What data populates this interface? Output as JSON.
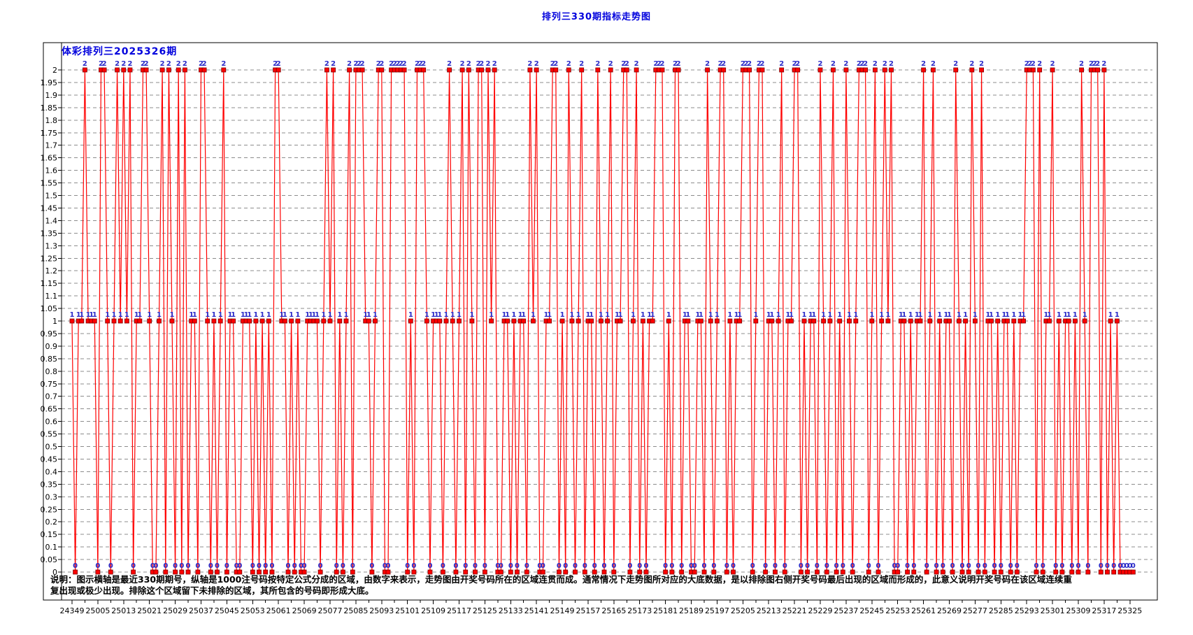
{
  "page_title": "排列三330期指标走势图",
  "chart": {
    "header": "体彩排列三2025326期",
    "description_lines": [
      "说明：图示横轴是最近330期期号，纵轴是1000注号码按特定公式分成的区域，由数字来表示，走势图由开奖号码所在的区域连贯而成。通常情况下走势图所对应的大底数据，是以排除图右侧开奖号码最后出现的区域而形成的，此意义说明开奖号码在该区域连续重",
      "复出现或极少出现。排除这个区域留下未排除的区域，其所包含的号码即形成大底。"
    ]
  },
  "chart_data": {
    "type": "line",
    "title": "排列三330期指标走势图",
    "subtitle": "体彩排列三2025326期",
    "points_count": 330,
    "point_values_are_labeled": true,
    "grid": "dashed-horizontal",
    "legend": "none",
    "x_axis": {
      "first_period": "24349",
      "label_every_n_points": 8,
      "tick_labels": [
        "24349",
        "25005",
        "25013",
        "25021",
        "25029",
        "25037",
        "25045",
        "25053",
        "25061",
        "25069",
        "25077",
        "25085",
        "25093",
        "25101",
        "25109",
        "25117",
        "25125",
        "25133",
        "25141",
        "25149",
        "25157",
        "25165",
        "25173",
        "25181",
        "25189",
        "25197",
        "25205",
        "25213",
        "25221",
        "25229",
        "25237",
        "25245",
        "25253",
        "25261",
        "25269",
        "25277",
        "25285",
        "25293",
        "25301",
        "25309",
        "25317",
        "25325"
      ]
    },
    "y_axis": {
      "min": 0,
      "max": 2,
      "step": 0.05,
      "tick_labels": [
        "2",
        "1.95",
        "1.9",
        "1.85",
        "1.8",
        "1.75",
        "1.7",
        "1.65",
        "1.6",
        "1.55",
        "1.5",
        "1.45",
        "1.4",
        "1.35",
        "1.3",
        "1.25",
        "1.2",
        "1.15",
        "1.1",
        "1.05",
        "1",
        "0.95",
        "0.9",
        "0.85",
        "0.8",
        "0.75",
        "0.7",
        "0.65",
        "0.6",
        "0.55",
        "0.5",
        "0.45",
        "0.4",
        "0.35",
        "0.3",
        "0.25",
        "0.2",
        "0.15",
        "0.1",
        "0.05",
        "0"
      ]
    },
    "values": [
      1,
      0,
      1,
      1,
      2,
      1,
      1,
      1,
      0,
      2,
      2,
      1,
      0,
      1,
      2,
      1,
      2,
      1,
      2,
      0,
      1,
      1,
      2,
      2,
      1,
      0,
      0,
      1,
      2,
      0,
      2,
      1,
      0,
      2,
      0,
      2,
      0,
      1,
      1,
      0,
      2,
      2,
      1,
      0,
      1,
      0,
      1,
      2,
      0,
      1,
      1,
      0,
      0,
      1,
      1,
      1,
      0,
      1,
      0,
      1,
      0,
      1,
      0,
      2,
      2,
      1,
      1,
      0,
      1,
      0,
      1,
      0,
      0,
      1,
      1,
      1,
      1,
      0,
      1,
      2,
      1,
      2,
      0,
      1,
      0,
      1,
      2,
      0,
      2,
      2,
      2,
      1,
      1,
      0,
      1,
      2,
      2,
      0,
      0,
      2,
      2,
      2,
      2,
      2,
      0,
      1,
      0,
      2,
      2,
      2,
      1,
      0,
      1,
      1,
      1,
      0,
      1,
      2,
      1,
      0,
      1,
      2,
      0,
      2,
      1,
      0,
      2,
      2,
      0,
      2,
      1,
      2,
      0,
      0,
      1,
      1,
      0,
      1,
      0,
      1,
      1,
      0,
      2,
      1,
      2,
      0,
      0,
      1,
      1,
      2,
      2,
      0,
      1,
      0,
      2,
      1,
      0,
      1,
      2,
      0,
      1,
      1,
      0,
      2,
      1,
      0,
      1,
      2,
      0,
      1,
      1,
      2,
      2,
      0,
      1,
      2,
      0,
      1,
      0,
      1,
      1,
      2,
      2,
      2,
      0,
      1,
      0,
      2,
      2,
      0,
      1,
      1,
      0,
      0,
      1,
      1,
      0,
      2,
      1,
      0,
      1,
      2,
      2,
      0,
      1,
      0,
      1,
      1,
      2,
      2,
      2,
      0,
      1,
      2,
      2,
      0,
      1,
      1,
      0,
      1,
      2,
      0,
      1,
      1,
      2,
      2,
      0,
      1,
      0,
      1,
      1,
      0,
      2,
      1,
      0,
      1,
      2,
      0,
      1,
      0,
      2,
      1,
      0,
      1,
      2,
      2,
      2,
      0,
      1,
      2,
      0,
      1,
      2,
      1,
      2,
      0,
      0,
      1,
      1,
      0,
      1,
      0,
      1,
      1,
      2,
      0,
      1,
      2,
      0,
      1,
      0,
      1,
      1,
      0,
      2,
      1,
      0,
      1,
      0,
      2,
      1,
      0,
      2,
      0,
      1,
      1,
      0,
      1,
      0,
      1,
      1,
      0,
      1,
      0,
      1,
      1,
      2,
      2,
      2,
      0,
      2,
      0,
      1,
      1,
      2,
      0,
      1,
      0,
      1,
      1,
      0,
      1,
      0,
      2,
      1,
      0,
      2,
      2,
      2,
      0,
      2,
      0,
      1,
      0,
      1,
      0,
      0,
      0,
      0,
      0
    ],
    "colors": {
      "line": "#ff0000",
      "marker": "#ff0000",
      "marker_border": "#7a0000",
      "point_label": "#2929c8",
      "grid": "#8c8c8c",
      "axis": "#000000",
      "title": "#0000dd",
      "header": "#0000dd",
      "tick_label": "#000000"
    }
  }
}
